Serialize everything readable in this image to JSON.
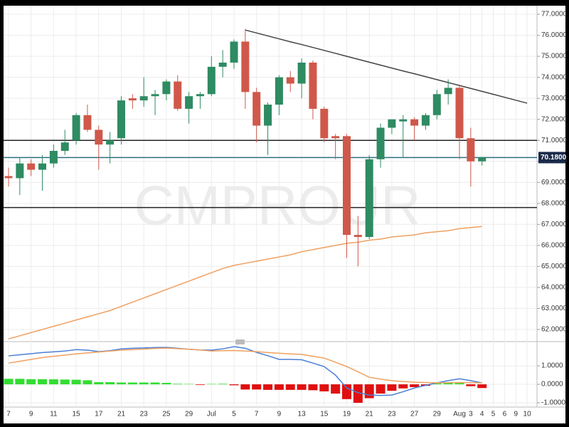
{
  "chart_data": [
    {
      "type": "candlestick",
      "categories": [
        "7",
        null,
        "9",
        null,
        "11",
        null,
        "15",
        null,
        "17",
        null,
        "21",
        null,
        "23",
        null,
        "25",
        null,
        "29",
        null,
        "Jul",
        null,
        "5",
        null,
        "7",
        null,
        "9",
        null,
        "13",
        null,
        "15",
        null,
        "19",
        null,
        "21",
        null,
        "23",
        null,
        "27",
        null,
        "29",
        null,
        "Aug",
        "3",
        "4",
        "5",
        "6",
        "9",
        "10"
      ],
      "open": [
        69.3,
        69.2,
        69.9,
        69.6,
        69.9,
        70.5,
        71.0,
        72.2,
        71.5,
        70.8,
        71.1,
        73.0,
        72.9,
        73.1,
        73.2,
        73.8,
        72.5,
        73.1,
        73.2,
        74.5,
        74.7,
        75.7,
        73.3,
        71.7,
        72.7,
        74.0,
        73.7,
        74.7,
        72.5,
        71.2,
        71.2,
        66.5,
        66.4,
        70.1,
        71.6,
        71.9,
        72.0,
        71.7,
        72.2,
        73.2,
        73.5,
        71.1,
        70.0,
        null,
        null,
        null,
        null
      ],
      "high": [
        69.7,
        70.2,
        70.1,
        70.3,
        70.8,
        71.5,
        72.3,
        72.7,
        71.7,
        71.4,
        73.1,
        73.2,
        74.0,
        73.4,
        73.9,
        74.1,
        73.3,
        73.3,
        75.0,
        75.3,
        75.8,
        76.3,
        73.5,
        72.8,
        74.1,
        74.3,
        74.9,
        74.8,
        72.6,
        71.3,
        71.3,
        67.4,
        70.3,
        71.8,
        72.0,
        72.2,
        72.1,
        72.3,
        73.4,
        73.9,
        73.6,
        71.6,
        70.2,
        null,
        null,
        null,
        null
      ],
      "low": [
        68.8,
        68.4,
        69.3,
        68.6,
        69.7,
        70.3,
        70.8,
        71.4,
        69.6,
        69.9,
        70.8,
        72.5,
        72.6,
        72.2,
        72.9,
        72.4,
        71.8,
        72.5,
        73.1,
        74.0,
        74.4,
        72.5,
        70.9,
        70.3,
        72.2,
        73.3,
        73.0,
        72.0,
        70.9,
        70.1,
        65.4,
        65.0,
        66.3,
        69.7,
        71.3,
        70.2,
        71.0,
        71.5,
        72.0,
        72.7,
        70.1,
        68.8,
        69.8,
        null,
        null,
        null,
        null
      ],
      "close": [
        69.2,
        69.9,
        69.6,
        69.9,
        70.5,
        70.9,
        72.2,
        71.5,
        70.8,
        71.0,
        72.9,
        72.9,
        73.1,
        73.2,
        73.8,
        72.5,
        73.1,
        73.2,
        74.5,
        74.7,
        75.7,
        73.3,
        71.7,
        72.7,
        74.0,
        73.7,
        74.7,
        72.5,
        71.1,
        71.1,
        66.5,
        66.4,
        70.1,
        71.6,
        72.0,
        72.0,
        71.7,
        72.2,
        73.2,
        73.5,
        71.1,
        70.0,
        70.2,
        null,
        null,
        null,
        null
      ],
      "up_color": "#2e8b62",
      "down_color": "#d0584a",
      "lines": [
        {
          "color": "#f0a060",
          "values": [
            61.55,
            61.7,
            61.85,
            62.0,
            62.15,
            62.3,
            62.45,
            62.6,
            62.75,
            62.9,
            63.1,
            63.3,
            63.5,
            63.7,
            63.9,
            64.1,
            64.3,
            64.5,
            64.7,
            64.9,
            65.05,
            65.15,
            65.25,
            65.35,
            65.45,
            65.55,
            65.7,
            65.8,
            65.9,
            66.0,
            66.1,
            66.15,
            66.25,
            66.3,
            66.4,
            66.45,
            66.5,
            66.6,
            66.65,
            66.7,
            66.8,
            66.85,
            66.9,
            null,
            null,
            null,
            null
          ]
        },
        {
          "color": "#444444",
          "values": [
            null,
            null,
            null,
            null,
            null,
            null,
            null,
            null,
            null,
            null,
            null,
            null,
            null,
            null,
            null,
            null,
            null,
            null,
            null,
            null,
            null,
            76.25,
            76.11,
            75.97,
            75.83,
            75.69,
            75.56,
            75.42,
            75.28,
            75.14,
            75.0,
            74.86,
            74.72,
            74.58,
            74.44,
            74.3,
            74.17,
            74.03,
            73.89,
            73.75,
            73.61,
            73.47,
            73.33,
            73.19,
            73.05,
            72.91,
            72.77
          ]
        }
      ],
      "hlines": [
        {
          "value": 71.0,
          "color": "#222222"
        },
        {
          "value": 67.8,
          "color": "#222222"
        },
        {
          "value": 70.18,
          "color": "#2f6f7f"
        }
      ],
      "last_price": {
        "value": 70.18,
        "label": "70.1800"
      },
      "watermark": "CMPROUR",
      "ylim": [
        61.49,
        77.34
      ],
      "yticks": [
        {
          "value": 62,
          "label": "62.0000"
        },
        {
          "value": 63,
          "label": "63.0000"
        },
        {
          "value": 64,
          "label": "64.0000"
        },
        {
          "value": 65,
          "label": "65.0000"
        },
        {
          "value": 66,
          "label": "66.0000"
        },
        {
          "value": 67,
          "label": "67.0000"
        },
        {
          "value": 68,
          "label": "68.0000"
        },
        {
          "value": 69,
          "label": "69.0000"
        },
        {
          "value": 70,
          "label": "70.0000"
        },
        {
          "value": 71,
          "label": "71.0000"
        },
        {
          "value": 72,
          "label": "72.0000"
        },
        {
          "value": 73,
          "label": "73.0000"
        },
        {
          "value": 74,
          "label": "74.0000"
        },
        {
          "value": 75,
          "label": "75.0000"
        },
        {
          "value": 76,
          "label": "76.0000"
        },
        {
          "value": 77,
          "label": "77.0000"
        }
      ],
      "grid": true
    },
    {
      "type": "macd",
      "histogram": {
        "pos_color": "#33dd33",
        "neg_color": "#e01010",
        "values": [
          0.3,
          0.3,
          0.28,
          0.28,
          0.27,
          0.26,
          0.25,
          0.22,
          0.12,
          0.12,
          0.1,
          0.1,
          0.1,
          0.1,
          0.08,
          0.03,
          0.02,
          -0.03,
          0.02,
          0.03,
          -0.05,
          -0.28,
          -0.28,
          -0.3,
          -0.3,
          -0.3,
          -0.3,
          -0.32,
          -0.38,
          -0.5,
          -0.8,
          -1.0,
          -0.75,
          -0.5,
          -0.35,
          -0.22,
          -0.15,
          -0.08,
          0.05,
          0.1,
          0.08,
          -0.1,
          -0.2,
          null,
          null,
          null,
          null
        ]
      },
      "lines": [
        {
          "color": "#4a7fd6",
          "values": [
            1.54,
            1.6,
            1.66,
            1.72,
            1.76,
            1.8,
            1.88,
            1.85,
            1.77,
            1.82,
            1.92,
            1.95,
            1.97,
            1.99,
            2.0,
            1.95,
            1.9,
            1.86,
            1.85,
            1.92,
            2.04,
            1.95,
            1.73,
            1.55,
            1.35,
            1.35,
            1.33,
            1.15,
            0.96,
            0.5,
            -0.2,
            -0.45,
            -0.58,
            -0.6,
            -0.58,
            -0.4,
            -0.2,
            -0.05,
            0.08,
            0.2,
            0.3,
            0.2,
            0.08,
            null,
            null,
            null,
            null
          ]
        },
        {
          "color": "#f0a060",
          "values": [
            1.15,
            1.25,
            1.35,
            1.45,
            1.52,
            1.58,
            1.65,
            1.7,
            1.75,
            1.8,
            1.85,
            1.88,
            1.91,
            1.94,
            1.96,
            1.93,
            1.9,
            1.86,
            1.8,
            1.82,
            1.83,
            1.8,
            1.77,
            1.72,
            1.68,
            1.65,
            1.62,
            1.52,
            1.42,
            1.2,
            0.96,
            0.68,
            0.38,
            0.28,
            0.2,
            0.15,
            0.12,
            0.1,
            0.08,
            0.09,
            0.1,
            0.09,
            0.08,
            null,
            null,
            null,
            null
          ]
        }
      ],
      "ylim": [
        -1.23,
        2.12
      ],
      "yticks": [
        {
          "value": 1,
          "label": "1.0000"
        },
        {
          "value": 0,
          "label": "0.0000"
        },
        {
          "value": -1,
          "label": "-1.0000"
        }
      ],
      "grid": true
    }
  ]
}
